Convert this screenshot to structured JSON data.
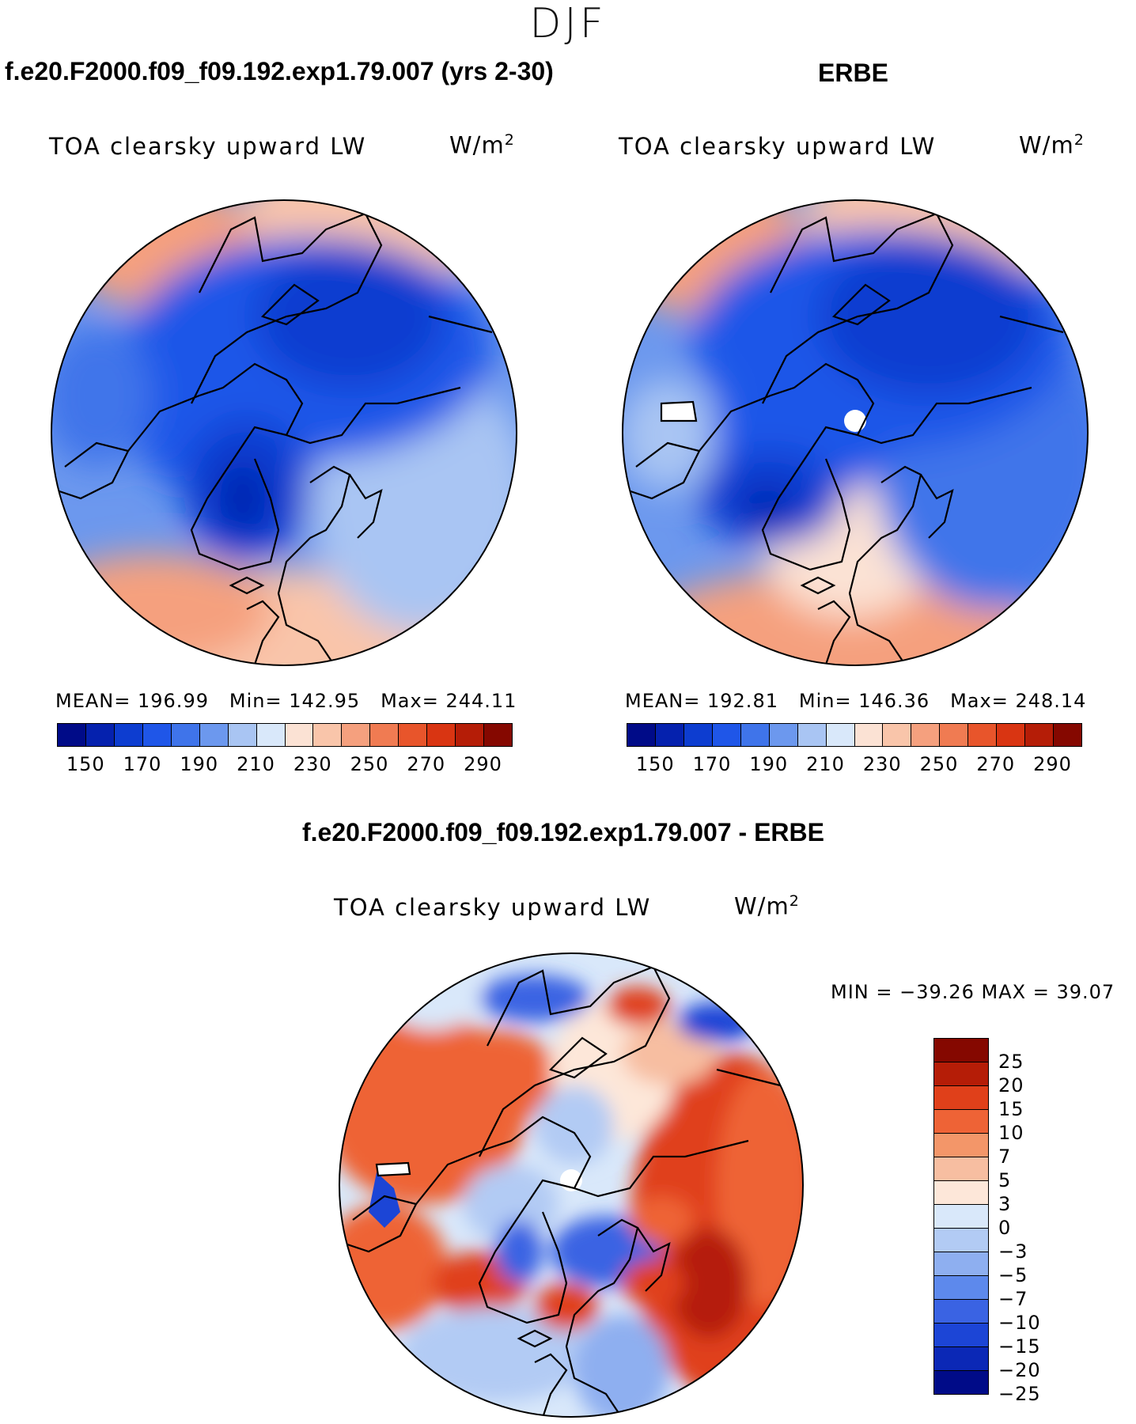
{
  "season": "DJF",
  "panels": {
    "model": {
      "case_title": "f.e20.F2000.f09_f09.192.exp1.79.007 (yrs 2-30)",
      "variable": "TOA clearsky upward LW",
      "units_base": "W/m",
      "units_exp": "2",
      "stats": {
        "mean": "196.99",
        "min": "142.95",
        "max": "244.11"
      },
      "stats_labels": {
        "mean": "MEAN=",
        "min": "Min=",
        "max": "Max="
      }
    },
    "obs": {
      "case_title": "ERBE",
      "variable": "TOA clearsky upward LW",
      "units_base": "W/m",
      "units_exp": "2",
      "stats": {
        "mean": "192.81",
        "min": "146.36",
        "max": "248.14"
      },
      "stats_labels": {
        "mean": "MEAN=",
        "min": "Min=",
        "max": "Max="
      }
    },
    "diff": {
      "case_title": "f.e20.F2000.f09_f09.192.exp1.79.007 - ERBE",
      "variable": "TOA clearsky upward LW",
      "units_base": "W/m",
      "units_exp": "2",
      "minmax_text": "MIN = −39.26 MAX =   39.07"
    }
  },
  "colorbar_abs": {
    "colors": [
      "#000b88",
      "#0521ae",
      "#0d3dd0",
      "#1f56e8",
      "#3f74ea",
      "#6c98ee",
      "#a9c5f3",
      "#d9e8fa",
      "#fbe2d4",
      "#f9c5aa",
      "#f5a07e",
      "#f07b52",
      "#e8552b",
      "#d93512",
      "#b51d07",
      "#850800"
    ],
    "tick_labels": [
      "150",
      "170",
      "190",
      "210",
      "230",
      "250",
      "270",
      "290"
    ]
  },
  "colorbar_diff": {
    "colors": [
      "#850800",
      "#b51d07",
      "#e0401a",
      "#ee6336",
      "#f39669",
      "#f7bea1",
      "#fde7d9",
      "#d9e8fa",
      "#b2cbf4",
      "#8eaff0",
      "#5d89ec",
      "#3a63e3",
      "#1c45d6",
      "#0b28b6",
      "#000b88"
    ],
    "tick_labels": [
      "25",
      "20",
      "15",
      "10",
      "7",
      "5",
      "3",
      "0",
      "−3",
      "−5",
      "−7",
      "−10",
      "−15",
      "−20",
      "−25"
    ]
  },
  "chart_data": [
    {
      "type": "heatmap",
      "title": "TOA clearsky upward LW",
      "subtitle": "f.e20.F2000.f09_f09.192.exp1.79.007 (yrs 2-30)",
      "projection": "north polar stereographic",
      "units": "W/m2",
      "levels": [
        150,
        160,
        170,
        180,
        190,
        200,
        210,
        220,
        230,
        240,
        250,
        260,
        270,
        280,
        290
      ],
      "mean": 196.99,
      "min": 142.95,
      "max": 244.11
    },
    {
      "type": "heatmap",
      "title": "TOA clearsky upward LW",
      "subtitle": "ERBE",
      "projection": "north polar stereographic",
      "units": "W/m2",
      "levels": [
        150,
        160,
        170,
        180,
        190,
        200,
        210,
        220,
        230,
        240,
        250,
        260,
        270,
        280,
        290
      ],
      "mean": 192.81,
      "min": 146.36,
      "max": 248.14
    },
    {
      "type": "heatmap",
      "title": "TOA clearsky upward LW",
      "subtitle": "f.e20.F2000.f09_f09.192.exp1.79.007 - ERBE",
      "projection": "north polar stereographic",
      "units": "W/m2",
      "levels": [
        -25,
        -20,
        -15,
        -10,
        -7,
        -5,
        -3,
        0,
        3,
        5,
        7,
        10,
        15,
        20,
        25
      ],
      "min": -39.26,
      "max": 39.07
    }
  ]
}
